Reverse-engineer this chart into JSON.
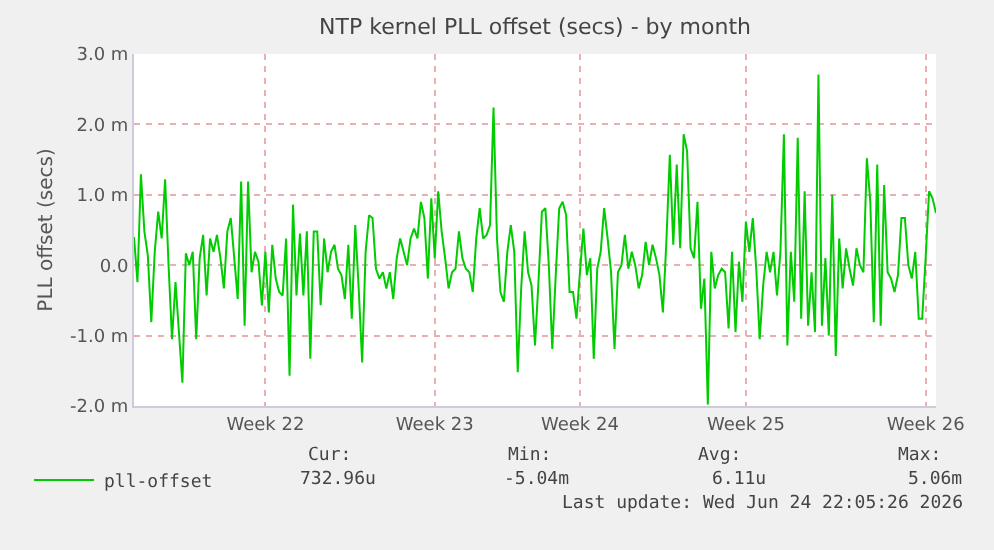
{
  "chart_data": {
    "type": "line",
    "title": "NTP kernel PLL offset (secs) - by month",
    "ylabel": "PLL offset (secs)",
    "categories": [
      null,
      null,
      null,
      null,
      null,
      null,
      null,
      null,
      null,
      null,
      null,
      null,
      null,
      null,
      null,
      null,
      null,
      null,
      null,
      null,
      null,
      null,
      null,
      null,
      null,
      null,
      null,
      null,
      null,
      null,
      null,
      null,
      null,
      null,
      null,
      null,
      null,
      null,
      "Week 22",
      null,
      null,
      null,
      null,
      null,
      null,
      null,
      null,
      null,
      null,
      null,
      null,
      null,
      null,
      null,
      null,
      null,
      null,
      null,
      null,
      null,
      null,
      null,
      null,
      null,
      null,
      null,
      null,
      null,
      null,
      null,
      null,
      null,
      null,
      null,
      null,
      null,
      null,
      null,
      null,
      null,
      null,
      null,
      null,
      null,
      null,
      null,
      null,
      "Week 23",
      null,
      null,
      null,
      null,
      null,
      null,
      null,
      null,
      null,
      null,
      null,
      null,
      null,
      null,
      null,
      null,
      null,
      null,
      null,
      null,
      null,
      null,
      null,
      null,
      null,
      null,
      null,
      null,
      null,
      null,
      null,
      null,
      null,
      null,
      null,
      null,
      null,
      null,
      null,
      null,
      null,
      "Week 24",
      null,
      null,
      null,
      null,
      null,
      null,
      null,
      null,
      null,
      null,
      null,
      null,
      null,
      null,
      null,
      null,
      null,
      null,
      null,
      null,
      null,
      null,
      null,
      null,
      null,
      null,
      null,
      null,
      null,
      null,
      null,
      null,
      null,
      null,
      null,
      null,
      null,
      null,
      null,
      null,
      null,
      null,
      null,
      null,
      null,
      null,
      null,
      "Week 25",
      null,
      null,
      null,
      null,
      null,
      null,
      null,
      null,
      null,
      null,
      null,
      null,
      null,
      null,
      null,
      null,
      null,
      null,
      null,
      null,
      null,
      null,
      null,
      null,
      null,
      null,
      null,
      null,
      null,
      null,
      null,
      null,
      null,
      null,
      null,
      null,
      null,
      null,
      null,
      null,
      null,
      null,
      null,
      null,
      null,
      null,
      null,
      null,
      null,
      null,
      null,
      "Week 26",
      null,
      null,
      null
    ],
    "ylim": [
      -2,
      3
    ],
    "yticks": [
      {
        "value": -2,
        "label": "-2.0 m"
      },
      {
        "value": -1,
        "label": "-1.0 m"
      },
      {
        "value": 0,
        "label": "0.0"
      },
      {
        "value": 1,
        "label": "1.0 m"
      },
      {
        "value": 2,
        "label": "2.0 m"
      },
      {
        "value": 3,
        "label": "3.0 m"
      }
    ],
    "grid": true,
    "legend": "bottom left",
    "marker": "none",
    "line_style": "solid",
    "series": [
      {
        "name": "pll-offset",
        "color": "#00cc00",
        "values": [
          0.4,
          -0.24,
          1.29,
          0.48,
          0.14,
          -0.81,
          0.19,
          0.76,
          0.38,
          1.22,
          0.0,
          -1.05,
          -0.24,
          -0.95,
          -1.67,
          0.17,
          0.0,
          0.19,
          -1.05,
          0.1,
          0.43,
          -0.43,
          0.38,
          0.19,
          0.43,
          0.1,
          -0.33,
          0.48,
          0.67,
          0.1,
          -0.48,
          1.19,
          -0.86,
          1.19,
          -0.1,
          0.19,
          0.05,
          -0.57,
          0.19,
          -0.67,
          0.29,
          -0.19,
          -0.38,
          -0.43,
          0.38,
          -1.57,
          0.86,
          -0.43,
          0.45,
          -0.43,
          0.48,
          -1.33,
          0.48,
          0.48,
          -0.57,
          0.38,
          -0.1,
          0.19,
          0.29,
          -0.05,
          -0.14,
          -0.48,
          0.29,
          -0.76,
          0.57,
          -0.33,
          -1.38,
          0.19,
          0.71,
          0.67,
          -0.05,
          -0.19,
          -0.1,
          -0.33,
          -0.1,
          -0.48,
          0.1,
          0.38,
          0.19,
          0.0,
          0.38,
          0.52,
          0.38,
          0.9,
          0.67,
          -0.19,
          0.95,
          0.1,
          1.05,
          0.48,
          0.1,
          -0.33,
          -0.1,
          -0.05,
          0.48,
          0.1,
          -0.05,
          -0.1,
          -0.38,
          0.38,
          0.81,
          0.38,
          0.43,
          0.57,
          2.24,
          0.38,
          -0.38,
          -0.52,
          0.19,
          0.57,
          0.19,
          -1.52,
          -0.33,
          0.48,
          -0.1,
          -0.29,
          -1.14,
          -0.24,
          0.76,
          0.81,
          0.0,
          -1.19,
          -0.14,
          0.81,
          0.9,
          0.71,
          -0.38,
          -0.38,
          -0.76,
          -0.1,
          0.52,
          -0.14,
          0.1,
          -1.33,
          -0.05,
          0.19,
          0.81,
          0.38,
          -0.1,
          -1.19,
          -0.1,
          0.0,
          0.43,
          -0.05,
          0.19,
          0.0,
          -0.33,
          -0.14,
          0.33,
          0.0,
          0.29,
          0.1,
          -0.14,
          -0.67,
          0.33,
          1.57,
          0.29,
          1.43,
          0.24,
          1.86,
          1.62,
          0.24,
          0.1,
          0.9,
          -0.62,
          -0.19,
          -1.98,
          0.19,
          -0.33,
          -0.14,
          -0.05,
          -0.1,
          -0.9,
          0.19,
          -0.95,
          0.05,
          -0.52,
          0.62,
          0.19,
          0.67,
          -0.05,
          -1.05,
          -0.29,
          0.19,
          -0.1,
          0.19,
          -0.43,
          0.19,
          1.86,
          -1.14,
          0.19,
          -0.52,
          1.81,
          -0.76,
          1.05,
          -0.86,
          -0.1,
          -0.95,
          2.71,
          -0.86,
          0.1,
          -1.0,
          1.0,
          -1.29,
          0.38,
          -0.33,
          0.24,
          -0.05,
          -0.29,
          0.24,
          0.0,
          -0.1,
          1.52,
          0.9,
          -0.81,
          1.43,
          -0.86,
          1.14,
          -0.1,
          -0.19,
          -0.38,
          -0.14,
          0.67,
          0.67,
          0.0,
          -0.19,
          0.19,
          -0.76,
          -0.76,
          0.1,
          1.05,
          0.95,
          0.74
        ]
      }
    ],
    "annotations": [
      "Cur:",
      "Min:",
      "Avg:",
      "Max:",
      "732.96u",
      "-5.04m",
      "6.11u",
      "5.06m",
      "Last update: Wed Jun 24 22:05:26 2026"
    ]
  }
}
